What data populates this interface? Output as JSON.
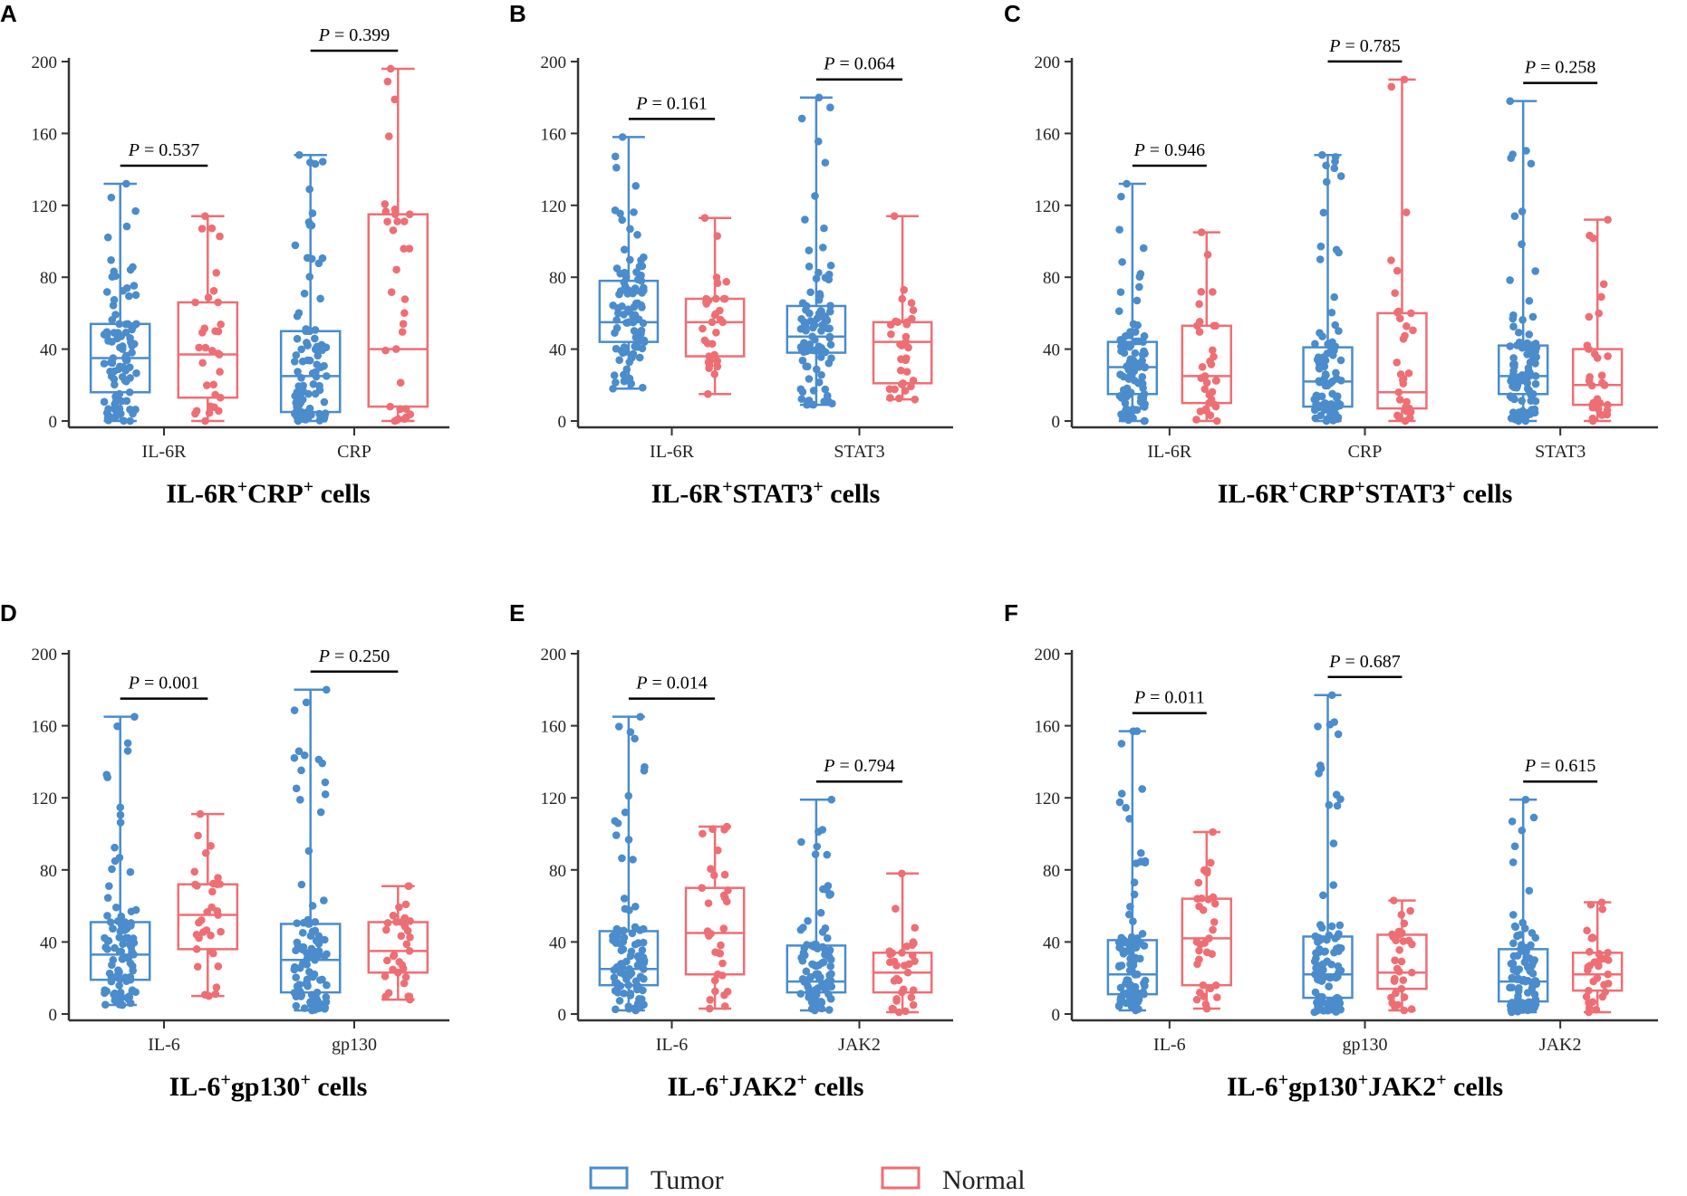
{
  "colors": {
    "tumor": "#4a8ccc",
    "normal": "#ee6e74",
    "axis": "#333333"
  },
  "legend": {
    "tumor_label": "Tumor",
    "normal_label": "Normal"
  },
  "chart_data": [
    {
      "type": "box",
      "panel": "A",
      "title_main": "IL-6R",
      "title_parts": [
        [
          "IL-6R",
          false
        ],
        [
          "+",
          true
        ],
        [
          "CRP",
          false
        ],
        [
          "+",
          true
        ],
        [
          " cells",
          false
        ]
      ],
      "ylim": [
        0,
        200
      ],
      "yticks": [
        0,
        40,
        80,
        120,
        160,
        200
      ],
      "groups": [
        {
          "category": "IL-6R",
          "p_value": "0.537",
          "tumor": {
            "min": 0,
            "q1": 16,
            "median": 35,
            "q3": 54,
            "max": 132
          },
          "normal": {
            "min": 0,
            "q1": 13,
            "median": 37,
            "q3": 66,
            "max": 114
          }
        },
        {
          "category": "CRP",
          "p_value": "0.399",
          "tumor": {
            "min": 0,
            "q1": 5,
            "median": 25,
            "q3": 50,
            "max": 148
          },
          "normal": {
            "min": 0,
            "q1": 8,
            "median": 40,
            "q3": 115,
            "max": 196
          }
        }
      ]
    },
    {
      "type": "box",
      "panel": "B",
      "title_parts": [
        [
          "IL-6R",
          false
        ],
        [
          "+",
          true
        ],
        [
          "STAT3",
          false
        ],
        [
          "+",
          true
        ],
        [
          " cells",
          false
        ]
      ],
      "ylim": [
        0,
        200
      ],
      "yticks": [
        0,
        40,
        80,
        120,
        160,
        200
      ],
      "groups": [
        {
          "category": "IL-6R",
          "p_value": "0.161",
          "tumor": {
            "min": 18,
            "q1": 44,
            "median": 55,
            "q3": 78,
            "max": 158
          },
          "normal": {
            "min": 15,
            "q1": 36,
            "median": 55,
            "q3": 68,
            "max": 113
          }
        },
        {
          "category": "STAT3",
          "p_value": "0.064",
          "tumor": {
            "min": 9,
            "q1": 38,
            "median": 47,
            "q3": 64,
            "max": 180
          },
          "normal": {
            "min": 12,
            "q1": 21,
            "median": 44,
            "q3": 55,
            "max": 114
          }
        }
      ]
    },
    {
      "type": "box",
      "panel": "C",
      "title_parts": [
        [
          "IL-6R",
          false
        ],
        [
          "+",
          true
        ],
        [
          "CRP",
          false
        ],
        [
          "+",
          true
        ],
        [
          "STAT3",
          false
        ],
        [
          "+",
          true
        ],
        [
          " cells",
          false
        ]
      ],
      "ylim": [
        0,
        200
      ],
      "yticks": [
        0,
        40,
        80,
        120,
        160,
        200
      ],
      "groups": [
        {
          "category": "IL-6R",
          "p_value": "0.946",
          "tumor": {
            "min": 0,
            "q1": 15,
            "median": 30,
            "q3": 44,
            "max": 132
          },
          "normal": {
            "min": 0,
            "q1": 10,
            "median": 25,
            "q3": 53,
            "max": 105
          }
        },
        {
          "category": "CRP",
          "p_value": "0.785",
          "tumor": {
            "min": 0,
            "q1": 8,
            "median": 22,
            "q3": 41,
            "max": 148
          },
          "normal": {
            "min": 0,
            "q1": 7,
            "median": 16,
            "q3": 60,
            "max": 190
          }
        },
        {
          "category": "STAT3",
          "p_value": "0.258",
          "tumor": {
            "min": 0,
            "q1": 15,
            "median": 25,
            "q3": 42,
            "max": 178
          },
          "normal": {
            "min": 0,
            "q1": 9,
            "median": 20,
            "q3": 40,
            "max": 112
          }
        }
      ]
    },
    {
      "type": "box",
      "panel": "D",
      "title_parts": [
        [
          "IL-6",
          false
        ],
        [
          "+",
          true
        ],
        [
          "gp130",
          false
        ],
        [
          "+",
          true
        ],
        [
          " cells",
          false
        ]
      ],
      "ylim": [
        0,
        200
      ],
      "yticks": [
        0,
        40,
        80,
        120,
        160,
        200
      ],
      "groups": [
        {
          "category": "IL-6",
          "p_value": "0.001",
          "tumor": {
            "min": 5,
            "q1": 19,
            "median": 33,
            "q3": 51,
            "max": 165
          },
          "normal": {
            "min": 10,
            "q1": 36,
            "median": 55,
            "q3": 72,
            "max": 111
          }
        },
        {
          "category": "gp130",
          "p_value": "0.250",
          "tumor": {
            "min": 2,
            "q1": 12,
            "median": 30,
            "q3": 50,
            "max": 180
          },
          "normal": {
            "min": 8,
            "q1": 23,
            "median": 35,
            "q3": 51,
            "max": 71
          }
        }
      ]
    },
    {
      "type": "box",
      "panel": "E",
      "title_parts": [
        [
          "IL-6",
          false
        ],
        [
          "+",
          true
        ],
        [
          "JAK2",
          false
        ],
        [
          "+",
          true
        ],
        [
          " cells",
          false
        ]
      ],
      "ylim": [
        0,
        200
      ],
      "yticks": [
        0,
        40,
        80,
        120,
        160,
        200
      ],
      "groups": [
        {
          "category": "IL-6",
          "p_value": "0.014",
          "tumor": {
            "min": 2,
            "q1": 16,
            "median": 25,
            "q3": 46,
            "max": 165
          },
          "normal": {
            "min": 3,
            "q1": 22,
            "median": 45,
            "q3": 70,
            "max": 104
          }
        },
        {
          "category": "JAK2",
          "p_value": "0.794",
          "tumor": {
            "min": 2,
            "q1": 12,
            "median": 18,
            "q3": 38,
            "max": 119
          },
          "normal": {
            "min": 1,
            "q1": 12,
            "median": 23,
            "q3": 34,
            "max": 78
          }
        }
      ]
    },
    {
      "type": "box",
      "panel": "F",
      "title_parts": [
        [
          "IL-6",
          false
        ],
        [
          "+",
          true
        ],
        [
          "gp130",
          false
        ],
        [
          "+",
          true
        ],
        [
          "JAK2",
          false
        ],
        [
          "+",
          true
        ],
        [
          " cells",
          false
        ]
      ],
      "ylim": [
        0,
        200
      ],
      "yticks": [
        0,
        40,
        80,
        120,
        160,
        200
      ],
      "groups": [
        {
          "category": "IL-6",
          "p_value": "0.011",
          "tumor": {
            "min": 2,
            "q1": 11,
            "median": 22,
            "q3": 41,
            "max": 157
          },
          "normal": {
            "min": 3,
            "q1": 16,
            "median": 42,
            "q3": 64,
            "max": 101
          }
        },
        {
          "category": "gp130",
          "p_value": "0.687",
          "tumor": {
            "min": 1,
            "q1": 9,
            "median": 22,
            "q3": 43,
            "max": 177
          },
          "normal": {
            "min": 2,
            "q1": 14,
            "median": 23,
            "q3": 44,
            "max": 63
          }
        },
        {
          "category": "JAK2",
          "p_value": "0.615",
          "tumor": {
            "min": 1,
            "q1": 7,
            "median": 18,
            "q3": 36,
            "max": 119
          },
          "normal": {
            "min": 1,
            "q1": 13,
            "median": 22,
            "q3": 34,
            "max": 62
          }
        }
      ]
    }
  ]
}
